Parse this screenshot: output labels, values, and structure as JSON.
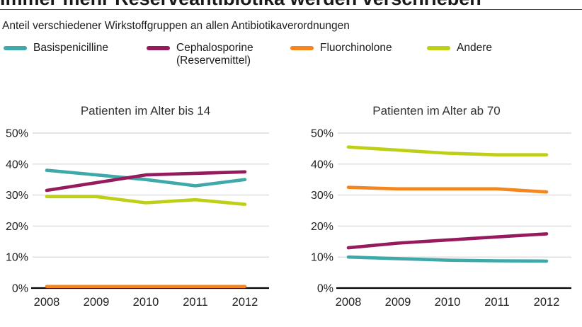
{
  "page": {
    "title": "Immer mehr Reserveantibiotika werden verschrieben",
    "subtitle": "Anteil verschiedener Wirkstoffgruppen an allen Antibiotikaverordnungen"
  },
  "style": {
    "grid_color": "#dcdcdc",
    "axis_color": "#000000",
    "text_color": "#1f1f1f",
    "teal": "#3fa9a9",
    "magenta": "#951b5e",
    "orange": "#f5861e",
    "yellow_green": "#bdd016"
  },
  "legend": [
    {
      "label": "Basispenicilline",
      "label2": "",
      "color": "#3fa9a9"
    },
    {
      "label": "Cephalosporine",
      "label2": "(Reservemittel)",
      "color": "#951b5e"
    },
    {
      "label": "Fluorchinolone",
      "label2": "",
      "color": "#f5861e"
    },
    {
      "label": "Andere",
      "label2": "",
      "color": "#bdd016"
    }
  ],
  "chart_data": [
    {
      "type": "line",
      "title": "Patienten im Alter bis 14",
      "categories": [
        "2008",
        "2009",
        "2010",
        "2011",
        "2012"
      ],
      "series": [
        {
          "name": "Basispenicilline",
          "color": "#3fa9a9",
          "values": [
            38,
            36.5,
            35,
            33,
            35
          ]
        },
        {
          "name": "Cephalosporine (Reservemittel)",
          "color": "#951b5e",
          "values": [
            31.5,
            34,
            36.5,
            37,
            37.5
          ]
        },
        {
          "name": "Fluorchinolone",
          "color": "#f5861e",
          "values": [
            0.5,
            0.5,
            0.5,
            0.5,
            0.5
          ]
        },
        {
          "name": "Andere",
          "color": "#bdd016",
          "values": [
            29.5,
            29.5,
            27.5,
            28.5,
            27
          ]
        }
      ],
      "ylim": [
        0,
        50
      ],
      "yticks": [
        "0%",
        "10%",
        "20%",
        "30%",
        "40%",
        "50%"
      ],
      "grid": true,
      "legend_position": "top"
    },
    {
      "type": "line",
      "title": "Patienten im Alter ab 70",
      "categories": [
        "2008",
        "2009",
        "2010",
        "2011",
        "2012"
      ],
      "series": [
        {
          "name": "Basispenicilline",
          "color": "#3fa9a9",
          "values": [
            10,
            9.5,
            9,
            8.8,
            8.7
          ]
        },
        {
          "name": "Cephalosporine (Reservemittel)",
          "color": "#951b5e",
          "values": [
            13,
            14.5,
            15.5,
            16.5,
            17.5
          ]
        },
        {
          "name": "Fluorchinolone",
          "color": "#f5861e",
          "values": [
            32.5,
            32,
            32,
            32,
            31
          ]
        },
        {
          "name": "Andere",
          "color": "#bdd016",
          "values": [
            45.5,
            44.5,
            43.5,
            43,
            43
          ]
        }
      ],
      "ylim": [
        0,
        50
      ],
      "yticks": [
        "0%",
        "10%",
        "20%",
        "30%",
        "40%",
        "50%"
      ],
      "grid": true,
      "legend_position": "top"
    }
  ]
}
